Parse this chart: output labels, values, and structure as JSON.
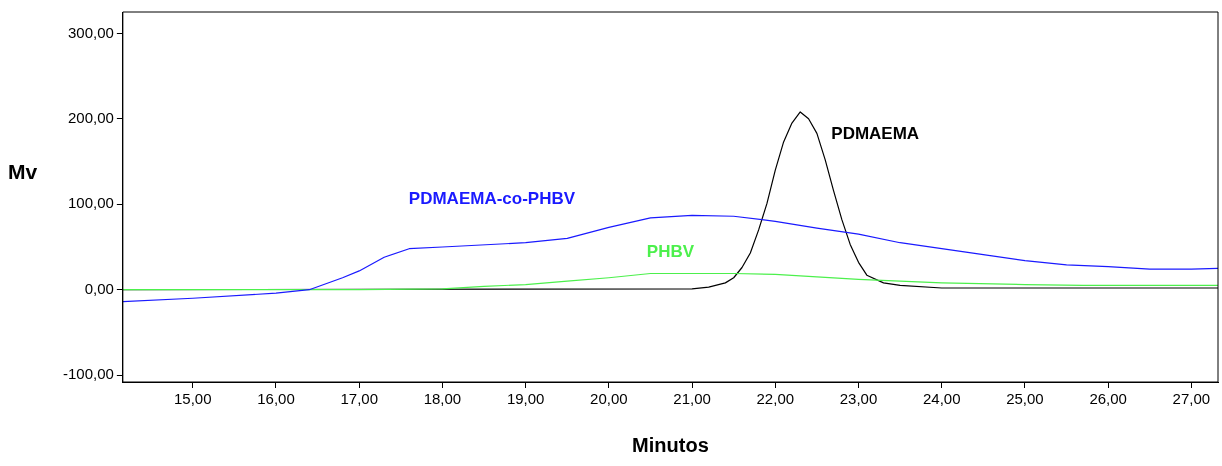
{
  "chart_data": {
    "type": "line",
    "xlabel": "Minutos",
    "ylabel": "Mv",
    "xlim": [
      14.16,
      27.32
    ],
    "ylim": [
      -108,
      325
    ],
    "xticks": [
      {
        "value": 15,
        "label": "15,00"
      },
      {
        "value": 16,
        "label": "16,00"
      },
      {
        "value": 17,
        "label": "17,00"
      },
      {
        "value": 18,
        "label": "18,00"
      },
      {
        "value": 19,
        "label": "19,00"
      },
      {
        "value": 20,
        "label": "20,00"
      },
      {
        "value": 21,
        "label": "21,00"
      },
      {
        "value": 22,
        "label": "22,00"
      },
      {
        "value": 23,
        "label": "23,00"
      },
      {
        "value": 24,
        "label": "24,00"
      },
      {
        "value": 25,
        "label": "25,00"
      },
      {
        "value": 26,
        "label": "26,00"
      },
      {
        "value": 27,
        "label": "27,00"
      }
    ],
    "yticks": [
      {
        "value": -100,
        "label": "-100,00"
      },
      {
        "value": 0,
        "label": "0,00"
      },
      {
        "value": 100,
        "label": "100,00"
      },
      {
        "value": 200,
        "label": "200,00"
      },
      {
        "value": 300,
        "label": "300,00"
      }
    ],
    "grid": false,
    "legend": false,
    "marker": "none",
    "line_style": "solid",
    "series": [
      {
        "name": "PDMAEMA-co-PHBV",
        "color": "#1a1aff",
        "x": [
          14.16,
          15,
          16,
          16.4,
          16.8,
          17,
          17.3,
          17.6,
          18,
          19,
          19.5,
          20,
          20.5,
          21,
          21.5,
          22,
          22.5,
          23,
          23.5,
          24,
          24.5,
          25,
          25.5,
          26,
          26.5,
          27,
          27.32
        ],
        "values": [
          -14,
          -10,
          -4,
          0,
          14,
          22,
          38,
          48,
          50,
          55,
          60,
          73,
          84,
          87,
          86,
          80,
          72,
          65,
          55,
          48,
          41,
          34,
          29,
          27,
          24,
          24,
          25
        ]
      },
      {
        "name": "PHBV",
        "color": "#4cf04c",
        "x": [
          14.16,
          17,
          18,
          18.5,
          19,
          19.5,
          20,
          20.5,
          21,
          21.5,
          22,
          22.5,
          23,
          23.5,
          24,
          25,
          25.7,
          27.32
        ],
        "values": [
          0,
          0,
          1,
          4,
          6,
          10,
          14,
          19,
          19,
          19,
          18,
          15,
          12,
          10,
          8,
          6,
          5,
          5
        ]
      },
      {
        "name": "PDMAEMA",
        "color": "#000000",
        "x": [
          14.16,
          21,
          21.2,
          21.4,
          21.5,
          21.6,
          21.7,
          21.8,
          21.9,
          22,
          22.1,
          22.2,
          22.3,
          22.4,
          22.5,
          22.6,
          22.7,
          22.8,
          22.9,
          23,
          23.1,
          23.3,
          23.5,
          24,
          27.32
        ],
        "values": [
          0,
          1,
          3,
          8,
          14,
          26,
          43,
          70,
          101,
          140,
          173,
          195,
          208,
          200,
          183,
          152,
          116,
          82,
          53,
          32,
          17,
          8,
          5,
          2,
          2
        ]
      }
    ]
  }
}
